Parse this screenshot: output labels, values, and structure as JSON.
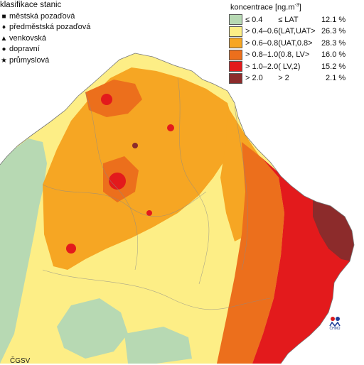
{
  "stations_legend": {
    "title": "klasifikace stanic",
    "items": [
      {
        "symbol": "■",
        "label": "městská pozaďová"
      },
      {
        "symbol": "♦",
        "label": "předměstská pozaďová"
      },
      {
        "symbol": "▲",
        "label": "venkovská"
      },
      {
        "symbol": "●",
        "label": "dopravní"
      },
      {
        "symbol": "★",
        "label": "průmyslová"
      }
    ]
  },
  "concentration_legend": {
    "title_main": "koncentrace [ng.m",
    "title_sup": "-3",
    "title_end": "]",
    "classes": [
      {
        "color": "#b7d9b3",
        "range": "≤ 0.4",
        "class": "≤ LAT",
        "percent": "12.1 %"
      },
      {
        "color": "#fdee86",
        "range": "> 0.4–0.6",
        "class": "(LAT,UAT>",
        "percent": "26.3 %"
      },
      {
        "color": "#f6a623",
        "range": "> 0.6–0.8",
        "class": "(UAT,0.8>",
        "percent": "28.3 %"
      },
      {
        "color": "#ec6f1c",
        "range": "> 0.8–1.0",
        "class": "(0.8, LV>",
        "percent": "16.0 %"
      },
      {
        "color": "#e31a1c",
        "range": "> 1.0–2.0",
        "class": "( LV,2)",
        "percent": "15.2 %"
      },
      {
        "color": "#8c2b2b",
        "range": "> 2.0",
        "class": "> 2",
        "percent": "2.1 %"
      }
    ]
  },
  "logo": {
    "text": "ČHMÚ",
    "dot_colors": [
      "#d7191c",
      "#1f3f99"
    ]
  },
  "footer_cut_text": "ČGSV"
}
